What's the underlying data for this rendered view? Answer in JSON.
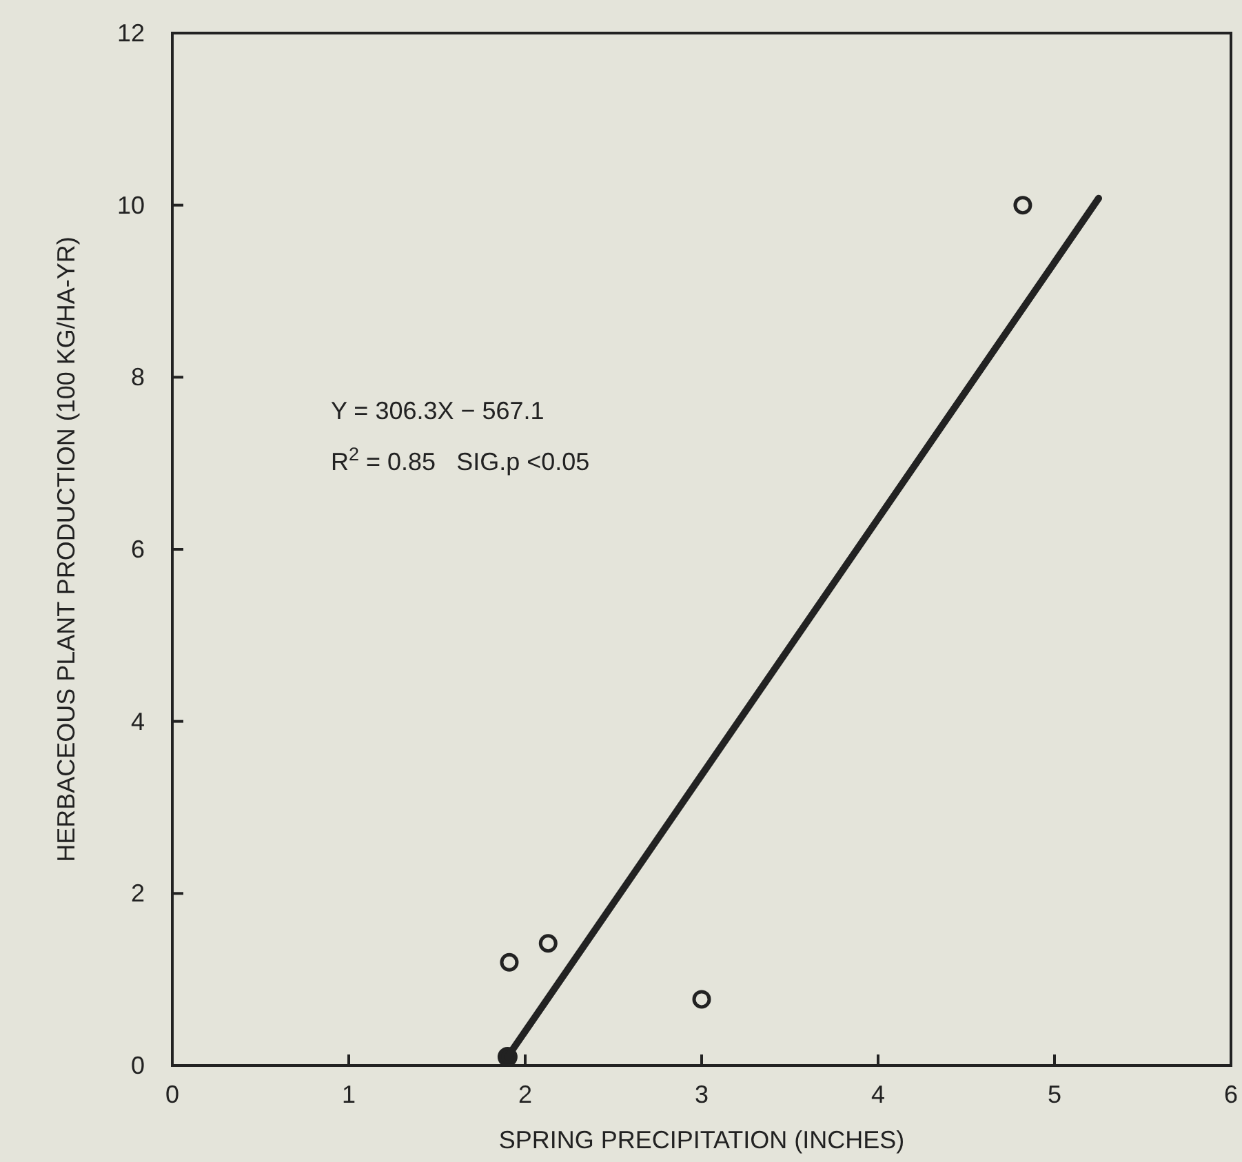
{
  "chart_data": {
    "type": "scatter",
    "xlabel": "SPRING PRECIPITATION (INCHES)",
    "ylabel": "HERBACEOUS PLANT PRODUCTION (100 KG/HA-YR)",
    "xlim": [
      0,
      6
    ],
    "ylim": [
      0,
      12
    ],
    "xticks": [
      0,
      1,
      2,
      3,
      4,
      5,
      6
    ],
    "yticks": [
      0,
      2,
      4,
      6,
      8,
      10,
      12
    ],
    "annotations": [
      "Y = 306.3X − 567.1",
      "R$^{2}$ = 0.85   SIG.p <0.05"
    ],
    "series": [
      {
        "color": "#222222",
        "x": [
          1.91,
          2.13,
          3.0,
          4.82
        ],
        "values": [
          1.2,
          1.42,
          0.77,
          10.0
        ]
      },
      {
        "color": "#222222",
        "marker": "circle",
        "x": [
          1.9
        ],
        "values": [
          0.1
        ]
      },
      {
        "type": "line",
        "color": "#222222",
        "line_style": "solid",
        "x": [
          1.9,
          5.25
        ],
        "values": [
          0.1,
          10.08
        ]
      }
    ]
  }
}
